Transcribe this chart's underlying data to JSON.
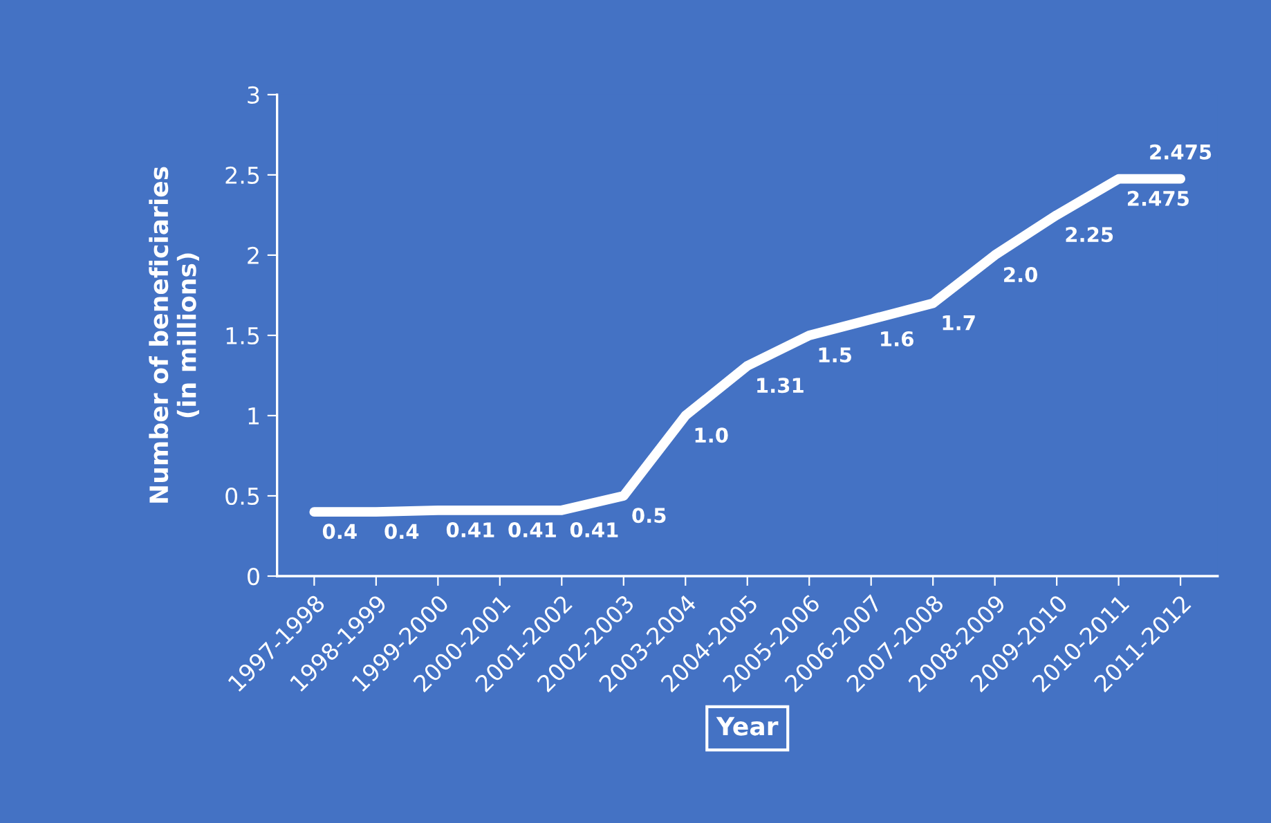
{
  "chart_data": {
    "type": "line",
    "xlabel": "Year",
    "ylabel": "Number of beneficiaries\n(in millions)",
    "categories": [
      "1997-1998",
      "1998-1999",
      "1999-2000",
      "2000-2001",
      "2001-2002",
      "2002-2003",
      "2003-2004",
      "2004-2005",
      "2005-2006",
      "2006-2007",
      "2007-2008",
      "2008-2009",
      "2009-2010",
      "2010-2011",
      "2011-2012"
    ],
    "series": [
      {
        "color": "#ffffff",
        "values": [
          0.4,
          0.4,
          0.41,
          0.41,
          0.41,
          0.5,
          1.0,
          1.31,
          1.5,
          1.6,
          1.7,
          2.0,
          2.25,
          2.475,
          2.475
        ],
        "value_labels": [
          "0.4",
          "0.4",
          "0.41",
          "0.41",
          "0.41",
          "0.5",
          "1.0",
          "1.31",
          "1.5",
          "1.6",
          "1.7",
          "2.0",
          "2.25",
          "2.475",
          "2.475"
        ]
      }
    ],
    "ylim": [
      0,
      3
    ],
    "yticks": [
      0,
      0.5,
      1,
      1.5,
      2,
      2.5,
      3
    ],
    "grid": false,
    "marker": "none",
    "line_style": "solid"
  }
}
